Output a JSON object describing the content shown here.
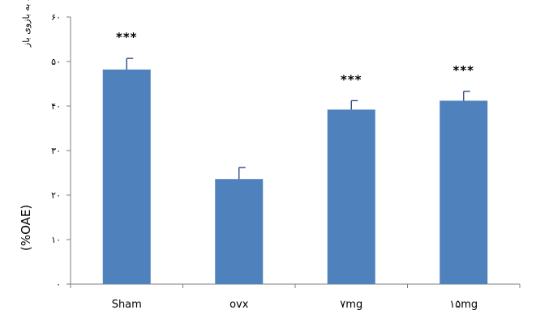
{
  "chart_data": {
    "type": "bar",
    "categories": [
      "Sham",
      "ovx",
      "۷mg",
      "۱۵mg"
    ],
    "values": [
      48.2,
      23.6,
      39.2,
      41.2
    ],
    "error": [
      2.5,
      2.6,
      2.0,
      2.1
    ],
    "significance": [
      "***",
      "",
      "***",
      "***"
    ],
    "title": "",
    "xlabel": "",
    "ylabel": "درصد دفعات ورود به بازوی باز",
    "ylabel_suffix": "(%OAE)",
    "ylim": [
      0,
      60
    ],
    "yticks": [
      0,
      10,
      20,
      30,
      40,
      50,
      60
    ],
    "ytick_labels": [
      "۰",
      "۱۰",
      "۲۰",
      "۳۰",
      "۴۰",
      "۵۰",
      "۶۰"
    ],
    "bar_color": "#4F81BD",
    "error_color": "#1F3F73",
    "grid": false,
    "legend": "none"
  }
}
